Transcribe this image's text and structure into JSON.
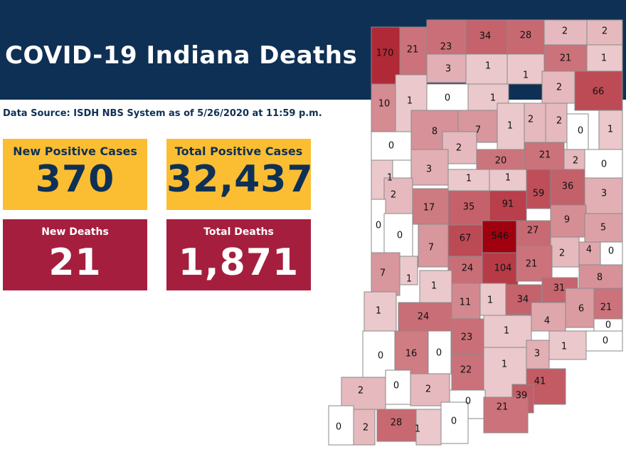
{
  "header": {
    "title": "COVID-19 Indiana Deaths"
  },
  "source": "Data Source: ISDH NBS System as of 5/26/2020 at 11:59 p.m.",
  "stats": [
    {
      "label": "New Positive Cases",
      "value": "370",
      "color": "#fbbe32"
    },
    {
      "label": "Total Positive Cases",
      "value": "32,437",
      "color": "#fbbe32"
    },
    {
      "label": "New Deaths",
      "value": "21",
      "color": "#a61e3e"
    },
    {
      "label": "Total Deaths",
      "value": "1,871",
      "color": "#a61e3e"
    }
  ],
  "colors": {
    "header_bg": "#0f3055",
    "highest": "#a1000f",
    "lowest": "#ffffff",
    "county_border": "#8a8a8a"
  },
  "map": {
    "counties": [
      {
        "value": 170
      },
      {
        "value": 21
      },
      {
        "value": 23
      },
      {
        "value": 34
      },
      {
        "value": 28
      },
      {
        "value": 2
      },
      {
        "value": 2
      },
      {
        "value": 3
      },
      {
        "value": 1
      },
      {
        "value": 1
      },
      {
        "value": 21
      },
      {
        "value": 1
      },
      {
        "value": 10
      },
      {
        "value": 1
      },
      {
        "value": 0
      },
      {
        "value": 1
      },
      {
        "value": 2
      },
      {
        "value": 66
      },
      {
        "value": 8
      },
      {
        "value": 7
      },
      {
        "value": 1
      },
      {
        "value": 2
      },
      {
        "value": 2
      },
      {
        "value": 0
      },
      {
        "value": 1
      },
      {
        "value": 0
      },
      {
        "value": 2
      },
      {
        "value": 20
      },
      {
        "value": 21
      },
      {
        "value": 2
      },
      {
        "value": 0
      },
      {
        "value": 1
      },
      {
        "value": 3
      },
      {
        "value": 1
      },
      {
        "value": 1
      },
      {
        "value": 59
      },
      {
        "value": 36
      },
      {
        "value": 2
      },
      {
        "value": 17
      },
      {
        "value": 35
      },
      {
        "value": 91
      },
      {
        "value": 3
      },
      {
        "value": 0
      },
      {
        "value": 0
      },
      {
        "value": 9
      },
      {
        "value": 5
      },
      {
        "value": 67
      },
      {
        "value": 546
      },
      {
        "value": 27
      },
      {
        "value": 7
      },
      {
        "value": 2
      },
      {
        "value": 4
      },
      {
        "value": 0
      },
      {
        "value": 7
      },
      {
        "value": 1
      },
      {
        "value": 24
      },
      {
        "value": 104
      },
      {
        "value": 21
      },
      {
        "value": 8
      },
      {
        "value": 1
      },
      {
        "value": 31
      },
      {
        "value": 1
      },
      {
        "value": 11
      },
      {
        "value": 1
      },
      {
        "value": 34
      },
      {
        "value": 6
      },
      {
        "value": 21
      },
      {
        "value": 24
      },
      {
        "value": 4
      },
      {
        "value": 1
      },
      {
        "value": 0
      },
      {
        "value": 23
      },
      {
        "value": 0
      },
      {
        "value": 0
      },
      {
        "value": 16
      },
      {
        "value": 0
      },
      {
        "value": 3
      },
      {
        "value": 1
      },
      {
        "value": 22
      },
      {
        "value": 1
      },
      {
        "value": 2
      },
      {
        "value": 0
      },
      {
        "value": 2
      },
      {
        "value": 41
      },
      {
        "value": 0
      },
      {
        "value": 39
      },
      {
        "value": 21
      },
      {
        "value": 0
      },
      {
        "value": 2
      },
      {
        "value": 28
      },
      {
        "value": 1
      },
      {
        "value": 0
      }
    ]
  }
}
